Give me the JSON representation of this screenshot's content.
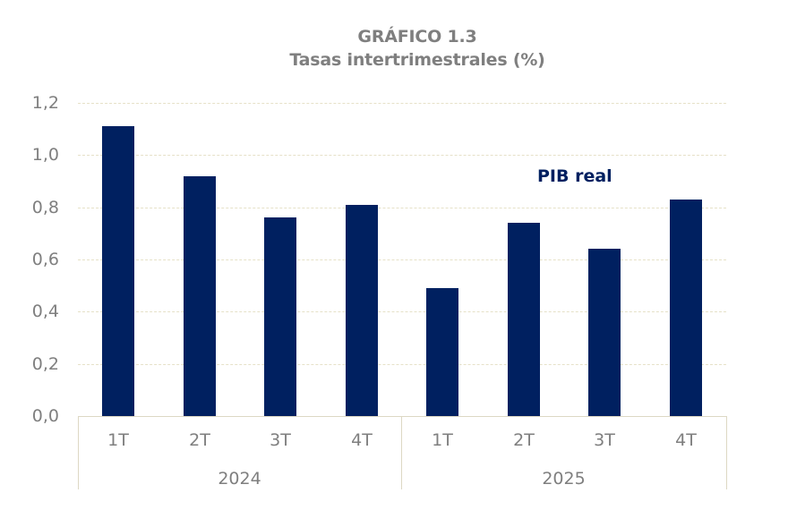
{
  "chart_data": {
    "type": "bar",
    "title": "GRÁFICO 1.3",
    "subtitle": "Tasas intertrimestrales (%)",
    "categories": [
      "1T",
      "2T",
      "3T",
      "4T",
      "1T",
      "2T",
      "3T",
      "4T"
    ],
    "groups": [
      {
        "label": "2024",
        "categories": [
          "1T",
          "2T",
          "3T",
          "4T"
        ]
      },
      {
        "label": "2025",
        "categories": [
          "1T",
          "2T",
          "3T",
          "4T"
        ]
      }
    ],
    "series": [
      {
        "name": "PIB real",
        "values": [
          1.11,
          0.92,
          0.76,
          0.81,
          0.49,
          0.74,
          0.64,
          0.83
        ],
        "color": "#002060"
      }
    ],
    "annotations": [
      "PIB real"
    ],
    "xlabel": "",
    "ylabel": "",
    "ylim": [
      0.0,
      1.2
    ],
    "yticks": [
      "0,0",
      "0,2",
      "0,4",
      "0,6",
      "0,8",
      "1,0",
      "1,2"
    ],
    "grid": true,
    "legend": "none"
  },
  "header": {
    "title": "GRÁFICO 1.3",
    "subtitle": "Tasas intertrimestrales (%)"
  },
  "annotation": {
    "label": "PIB real"
  },
  "y_axis": {
    "ticks": [
      "1,2",
      "1,0",
      "0,8",
      "0,6",
      "0,4",
      "0,2",
      "0,0"
    ]
  },
  "x_axis": {
    "labels": [
      "1T",
      "2T",
      "3T",
      "4T",
      "1T",
      "2T",
      "3T",
      "4T"
    ],
    "groups": [
      "2024",
      "2025"
    ]
  },
  "colors": {
    "bar": "#002060",
    "text": "#7f7f7f",
    "grid": "#e6e1c8"
  }
}
